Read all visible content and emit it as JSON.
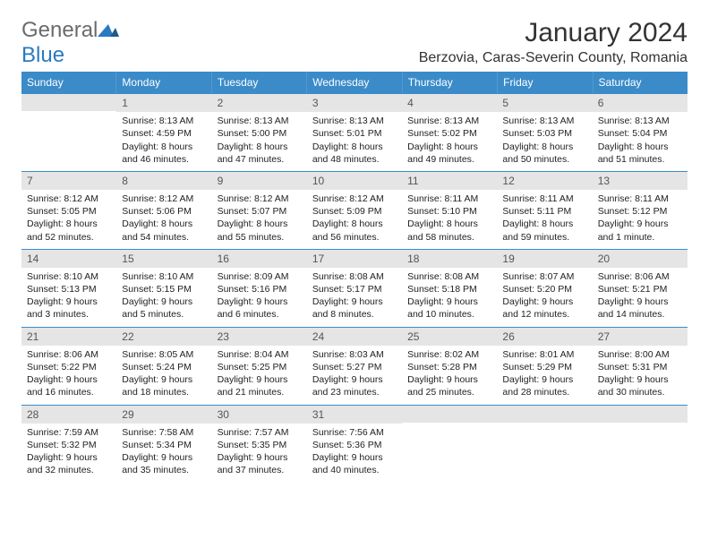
{
  "logo": {
    "part1": "General",
    "part2": "Blue"
  },
  "title": "January 2024",
  "location": "Berzovia, Caras-Severin County, Romania",
  "colors": {
    "header_bg": "#3b8bc9",
    "header_text": "#ffffff",
    "daynum_bg": "#e5e5e5",
    "rule": "#3b8bc9",
    "logo_gray": "#6b6b6b",
    "logo_blue": "#2a7ac0"
  },
  "day_names": [
    "Sunday",
    "Monday",
    "Tuesday",
    "Wednesday",
    "Thursday",
    "Friday",
    "Saturday"
  ],
  "weeks": [
    [
      {
        "empty": true
      },
      {
        "n": "1",
        "sr": "Sunrise: 8:13 AM",
        "ss": "Sunset: 4:59 PM",
        "d1": "Daylight: 8 hours",
        "d2": "and 46 minutes."
      },
      {
        "n": "2",
        "sr": "Sunrise: 8:13 AM",
        "ss": "Sunset: 5:00 PM",
        "d1": "Daylight: 8 hours",
        "d2": "and 47 minutes."
      },
      {
        "n": "3",
        "sr": "Sunrise: 8:13 AM",
        "ss": "Sunset: 5:01 PM",
        "d1": "Daylight: 8 hours",
        "d2": "and 48 minutes."
      },
      {
        "n": "4",
        "sr": "Sunrise: 8:13 AM",
        "ss": "Sunset: 5:02 PM",
        "d1": "Daylight: 8 hours",
        "d2": "and 49 minutes."
      },
      {
        "n": "5",
        "sr": "Sunrise: 8:13 AM",
        "ss": "Sunset: 5:03 PM",
        "d1": "Daylight: 8 hours",
        "d2": "and 50 minutes."
      },
      {
        "n": "6",
        "sr": "Sunrise: 8:13 AM",
        "ss": "Sunset: 5:04 PM",
        "d1": "Daylight: 8 hours",
        "d2": "and 51 minutes."
      }
    ],
    [
      {
        "n": "7",
        "sr": "Sunrise: 8:12 AM",
        "ss": "Sunset: 5:05 PM",
        "d1": "Daylight: 8 hours",
        "d2": "and 52 minutes."
      },
      {
        "n": "8",
        "sr": "Sunrise: 8:12 AM",
        "ss": "Sunset: 5:06 PM",
        "d1": "Daylight: 8 hours",
        "d2": "and 54 minutes."
      },
      {
        "n": "9",
        "sr": "Sunrise: 8:12 AM",
        "ss": "Sunset: 5:07 PM",
        "d1": "Daylight: 8 hours",
        "d2": "and 55 minutes."
      },
      {
        "n": "10",
        "sr": "Sunrise: 8:12 AM",
        "ss": "Sunset: 5:09 PM",
        "d1": "Daylight: 8 hours",
        "d2": "and 56 minutes."
      },
      {
        "n": "11",
        "sr": "Sunrise: 8:11 AM",
        "ss": "Sunset: 5:10 PM",
        "d1": "Daylight: 8 hours",
        "d2": "and 58 minutes."
      },
      {
        "n": "12",
        "sr": "Sunrise: 8:11 AM",
        "ss": "Sunset: 5:11 PM",
        "d1": "Daylight: 8 hours",
        "d2": "and 59 minutes."
      },
      {
        "n": "13",
        "sr": "Sunrise: 8:11 AM",
        "ss": "Sunset: 5:12 PM",
        "d1": "Daylight: 9 hours",
        "d2": "and 1 minute."
      }
    ],
    [
      {
        "n": "14",
        "sr": "Sunrise: 8:10 AM",
        "ss": "Sunset: 5:13 PM",
        "d1": "Daylight: 9 hours",
        "d2": "and 3 minutes."
      },
      {
        "n": "15",
        "sr": "Sunrise: 8:10 AM",
        "ss": "Sunset: 5:15 PM",
        "d1": "Daylight: 9 hours",
        "d2": "and 5 minutes."
      },
      {
        "n": "16",
        "sr": "Sunrise: 8:09 AM",
        "ss": "Sunset: 5:16 PM",
        "d1": "Daylight: 9 hours",
        "d2": "and 6 minutes."
      },
      {
        "n": "17",
        "sr": "Sunrise: 8:08 AM",
        "ss": "Sunset: 5:17 PM",
        "d1": "Daylight: 9 hours",
        "d2": "and 8 minutes."
      },
      {
        "n": "18",
        "sr": "Sunrise: 8:08 AM",
        "ss": "Sunset: 5:18 PM",
        "d1": "Daylight: 9 hours",
        "d2": "and 10 minutes."
      },
      {
        "n": "19",
        "sr": "Sunrise: 8:07 AM",
        "ss": "Sunset: 5:20 PM",
        "d1": "Daylight: 9 hours",
        "d2": "and 12 minutes."
      },
      {
        "n": "20",
        "sr": "Sunrise: 8:06 AM",
        "ss": "Sunset: 5:21 PM",
        "d1": "Daylight: 9 hours",
        "d2": "and 14 minutes."
      }
    ],
    [
      {
        "n": "21",
        "sr": "Sunrise: 8:06 AM",
        "ss": "Sunset: 5:22 PM",
        "d1": "Daylight: 9 hours",
        "d2": "and 16 minutes."
      },
      {
        "n": "22",
        "sr": "Sunrise: 8:05 AM",
        "ss": "Sunset: 5:24 PM",
        "d1": "Daylight: 9 hours",
        "d2": "and 18 minutes."
      },
      {
        "n": "23",
        "sr": "Sunrise: 8:04 AM",
        "ss": "Sunset: 5:25 PM",
        "d1": "Daylight: 9 hours",
        "d2": "and 21 minutes."
      },
      {
        "n": "24",
        "sr": "Sunrise: 8:03 AM",
        "ss": "Sunset: 5:27 PM",
        "d1": "Daylight: 9 hours",
        "d2": "and 23 minutes."
      },
      {
        "n": "25",
        "sr": "Sunrise: 8:02 AM",
        "ss": "Sunset: 5:28 PM",
        "d1": "Daylight: 9 hours",
        "d2": "and 25 minutes."
      },
      {
        "n": "26",
        "sr": "Sunrise: 8:01 AM",
        "ss": "Sunset: 5:29 PM",
        "d1": "Daylight: 9 hours",
        "d2": "and 28 minutes."
      },
      {
        "n": "27",
        "sr": "Sunrise: 8:00 AM",
        "ss": "Sunset: 5:31 PM",
        "d1": "Daylight: 9 hours",
        "d2": "and 30 minutes."
      }
    ],
    [
      {
        "n": "28",
        "sr": "Sunrise: 7:59 AM",
        "ss": "Sunset: 5:32 PM",
        "d1": "Daylight: 9 hours",
        "d2": "and 32 minutes."
      },
      {
        "n": "29",
        "sr": "Sunrise: 7:58 AM",
        "ss": "Sunset: 5:34 PM",
        "d1": "Daylight: 9 hours",
        "d2": "and 35 minutes."
      },
      {
        "n": "30",
        "sr": "Sunrise: 7:57 AM",
        "ss": "Sunset: 5:35 PM",
        "d1": "Daylight: 9 hours",
        "d2": "and 37 minutes."
      },
      {
        "n": "31",
        "sr": "Sunrise: 7:56 AM",
        "ss": "Sunset: 5:36 PM",
        "d1": "Daylight: 9 hours",
        "d2": "and 40 minutes."
      },
      {
        "empty": true
      },
      {
        "empty": true
      },
      {
        "empty": true
      }
    ]
  ]
}
